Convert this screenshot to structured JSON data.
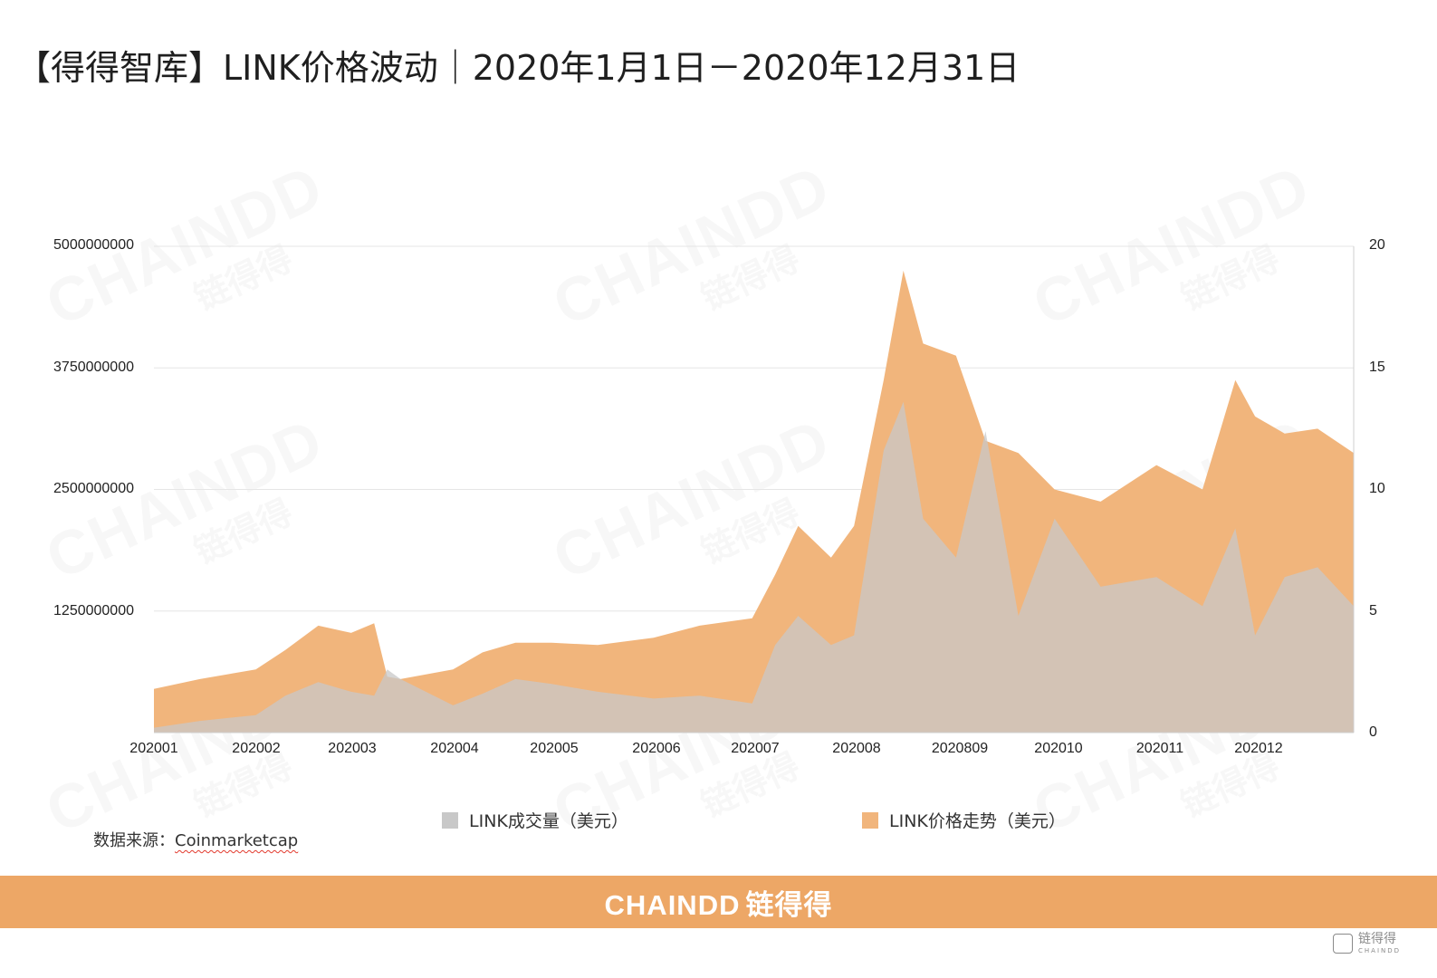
{
  "page": {
    "title": "【得得智库】LINK价格波动｜2020年1月1日－2020年12月31日",
    "source_label": "数据来源：",
    "source_value": "Coinmarketcap",
    "footer_brand": "CHAINDD",
    "footer_brand_cn": "链得得",
    "watermark_en": "CHAINDD",
    "watermark_cn": "链得得",
    "corner_logo_text": "链得得",
    "corner_logo_sub": "CHAINDD"
  },
  "colors": {
    "volume": "#c8c8c8",
    "price": "#f1b57c",
    "footer": "#eda766"
  },
  "chart_data": {
    "type": "area",
    "title": "【得得智库】LINK价格波动｜2020年1月1日－2020年12月31日",
    "x_tick_labels": [
      "202001",
      "202002",
      "202003",
      "202004",
      "202005",
      "202006",
      "202007",
      "202008",
      "2020809",
      "202010",
      "202011",
      "202012"
    ],
    "y_left": {
      "ylim": [
        0,
        5000000000
      ],
      "ticks": [
        "0",
        "1250000000",
        "2500000000",
        "3750000000",
        "5000000000"
      ],
      "tick_labels": [
        "",
        "1250000000",
        "2500000000",
        "3750000000",
        "5000000000"
      ]
    },
    "y_right": {
      "ylim": [
        0,
        20
      ],
      "ticks": [
        "0",
        "5",
        "10",
        "15",
        "20"
      ],
      "tick_labels": [
        "0",
        "5",
        "10",
        "15",
        "20"
      ]
    },
    "grid": true,
    "legend_position": "bottom",
    "series": [
      {
        "name": "LINK成交量（美元）",
        "axis": "left",
        "color": "#c8c8c8",
        "x": [
          "2020-01-01",
          "2020-01-15",
          "2020-02-01",
          "2020-02-10",
          "2020-02-20",
          "2020-03-01",
          "2020-03-08",
          "2020-03-12",
          "2020-03-16",
          "2020-04-01",
          "2020-04-10",
          "2020-04-20",
          "2020-05-01",
          "2020-05-15",
          "2020-06-01",
          "2020-06-15",
          "2020-07-01",
          "2020-07-08",
          "2020-07-15",
          "2020-07-25",
          "2020-08-01",
          "2020-08-10",
          "2020-08-16",
          "2020-08-22",
          "2020-09-01",
          "2020-09-10",
          "2020-09-20",
          "2020-10-01",
          "2020-10-15",
          "2020-11-01",
          "2020-11-15",
          "2020-11-25",
          "2020-12-01",
          "2020-12-10",
          "2020-12-20",
          "2020-12-31"
        ],
        "values": [
          50000000,
          120000000,
          180000000,
          380000000,
          520000000,
          420000000,
          380000000,
          650000000,
          550000000,
          280000000,
          400000000,
          550000000,
          500000000,
          420000000,
          350000000,
          380000000,
          300000000,
          900000000,
          1200000000,
          900000000,
          1000000000,
          2900000000,
          3400000000,
          2200000000,
          1800000000,
          3100000000,
          1200000000,
          2200000000,
          1500000000,
          1600000000,
          1300000000,
          2100000000,
          1000000000,
          1600000000,
          1700000000,
          1300000000
        ]
      },
      {
        "name": "LINK价格走势（美元）",
        "axis": "right",
        "color": "#f1b57c",
        "x": [
          "2020-01-01",
          "2020-01-15",
          "2020-02-01",
          "2020-02-10",
          "2020-02-20",
          "2020-03-01",
          "2020-03-08",
          "2020-03-12",
          "2020-03-16",
          "2020-04-01",
          "2020-04-10",
          "2020-04-20",
          "2020-05-01",
          "2020-05-15",
          "2020-06-01",
          "2020-06-15",
          "2020-07-01",
          "2020-07-08",
          "2020-07-15",
          "2020-07-25",
          "2020-08-01",
          "2020-08-10",
          "2020-08-16",
          "2020-08-22",
          "2020-09-01",
          "2020-09-10",
          "2020-09-20",
          "2020-10-01",
          "2020-10-15",
          "2020-11-01",
          "2020-11-15",
          "2020-11-25",
          "2020-12-01",
          "2020-12-10",
          "2020-12-20",
          "2020-12-31"
        ],
        "values": [
          1.8,
          2.2,
          2.6,
          3.4,
          4.4,
          4.1,
          4.5,
          2.3,
          2.2,
          2.6,
          3.3,
          3.7,
          3.7,
          3.6,
          3.9,
          4.4,
          4.7,
          6.5,
          8.5,
          7.2,
          8.5,
          14.5,
          19.0,
          16.0,
          15.5,
          12.0,
          11.5,
          10.0,
          9.5,
          11.0,
          10.0,
          14.5,
          13.0,
          12.3,
          12.5,
          11.5
        ]
      }
    ]
  }
}
